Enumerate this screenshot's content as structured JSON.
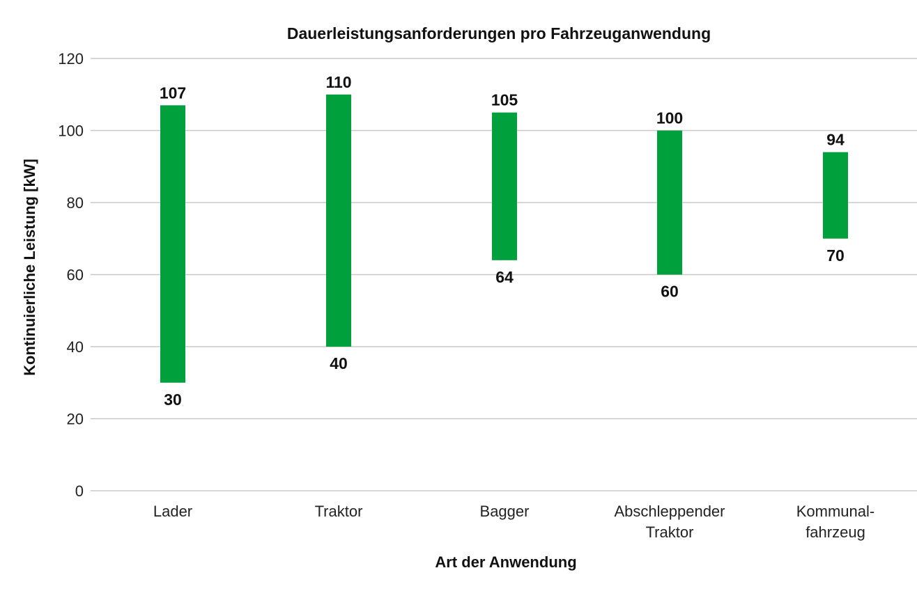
{
  "chart_data": {
    "type": "bar",
    "subtype": "floating-range",
    "title": "Dauerleistungsanforderungen pro Fahrzeuganwendung",
    "xlabel": "Art der Anwendung",
    "ylabel": "Kontinuierliche Leistung [kW]",
    "ylim": [
      0,
      120
    ],
    "yticks": [
      0,
      20,
      40,
      60,
      80,
      100,
      120
    ],
    "grid": true,
    "bar_color": "#00a03c",
    "categories": [
      [
        "Lader"
      ],
      [
        "Traktor"
      ],
      [
        "Bagger"
      ],
      [
        "Abschleppender",
        "Traktor"
      ],
      [
        "Kommunal-",
        "fahrzeug"
      ]
    ],
    "min": [
      30,
      40,
      64,
      60,
      70
    ],
    "max": [
      107,
      110,
      105,
      100,
      94
    ],
    "min_labels": [
      "30",
      "40",
      "64",
      "60",
      "70"
    ],
    "max_labels": [
      "107",
      "110",
      "105",
      "100",
      "94"
    ]
  }
}
